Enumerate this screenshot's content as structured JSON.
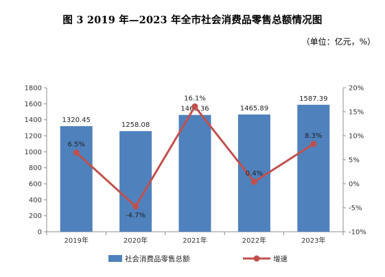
{
  "figure": {
    "title": "图 3 2019 年—2023 年全市社会消费品零售总额情况图",
    "unit": "（单位：亿元，%）"
  },
  "chart_data": {
    "type": "bar",
    "categories": [
      "2019年",
      "2020年",
      "2021年",
      "2022年",
      "2023年"
    ],
    "series": [
      {
        "name": "社会消费品零售总额",
        "type": "bar",
        "axis": "left",
        "values": [
          1320.45,
          1258.08,
          1460.36,
          1465.89,
          1587.39
        ],
        "labels": [
          "1320.45",
          "1258.08",
          "1460.36",
          "1465.89",
          "1587.39"
        ],
        "color": "#4F81BD"
      },
      {
        "name": "增速",
        "type": "line",
        "axis": "right",
        "values": [
          6.5,
          -4.7,
          16.1,
          0.4,
          8.3
        ],
        "labels": [
          "6.5%",
          "-4.7%",
          "16.1%",
          "0.4%",
          "8.3%"
        ],
        "color": "#C0504D"
      }
    ],
    "y_left": {
      "min": 0,
      "max": 1800,
      "step": 200,
      "ticks": [
        "0",
        "200",
        "400",
        "600",
        "800",
        "1000",
        "1200",
        "1400",
        "1600",
        "1800"
      ]
    },
    "y_right": {
      "min": -10,
      "max": 20,
      "step": 5,
      "ticks": [
        "-10%",
        "-5%",
        "0%",
        "5%",
        "10%",
        "15%",
        "20%"
      ]
    },
    "grid": false,
    "legend_position": "bottom"
  }
}
